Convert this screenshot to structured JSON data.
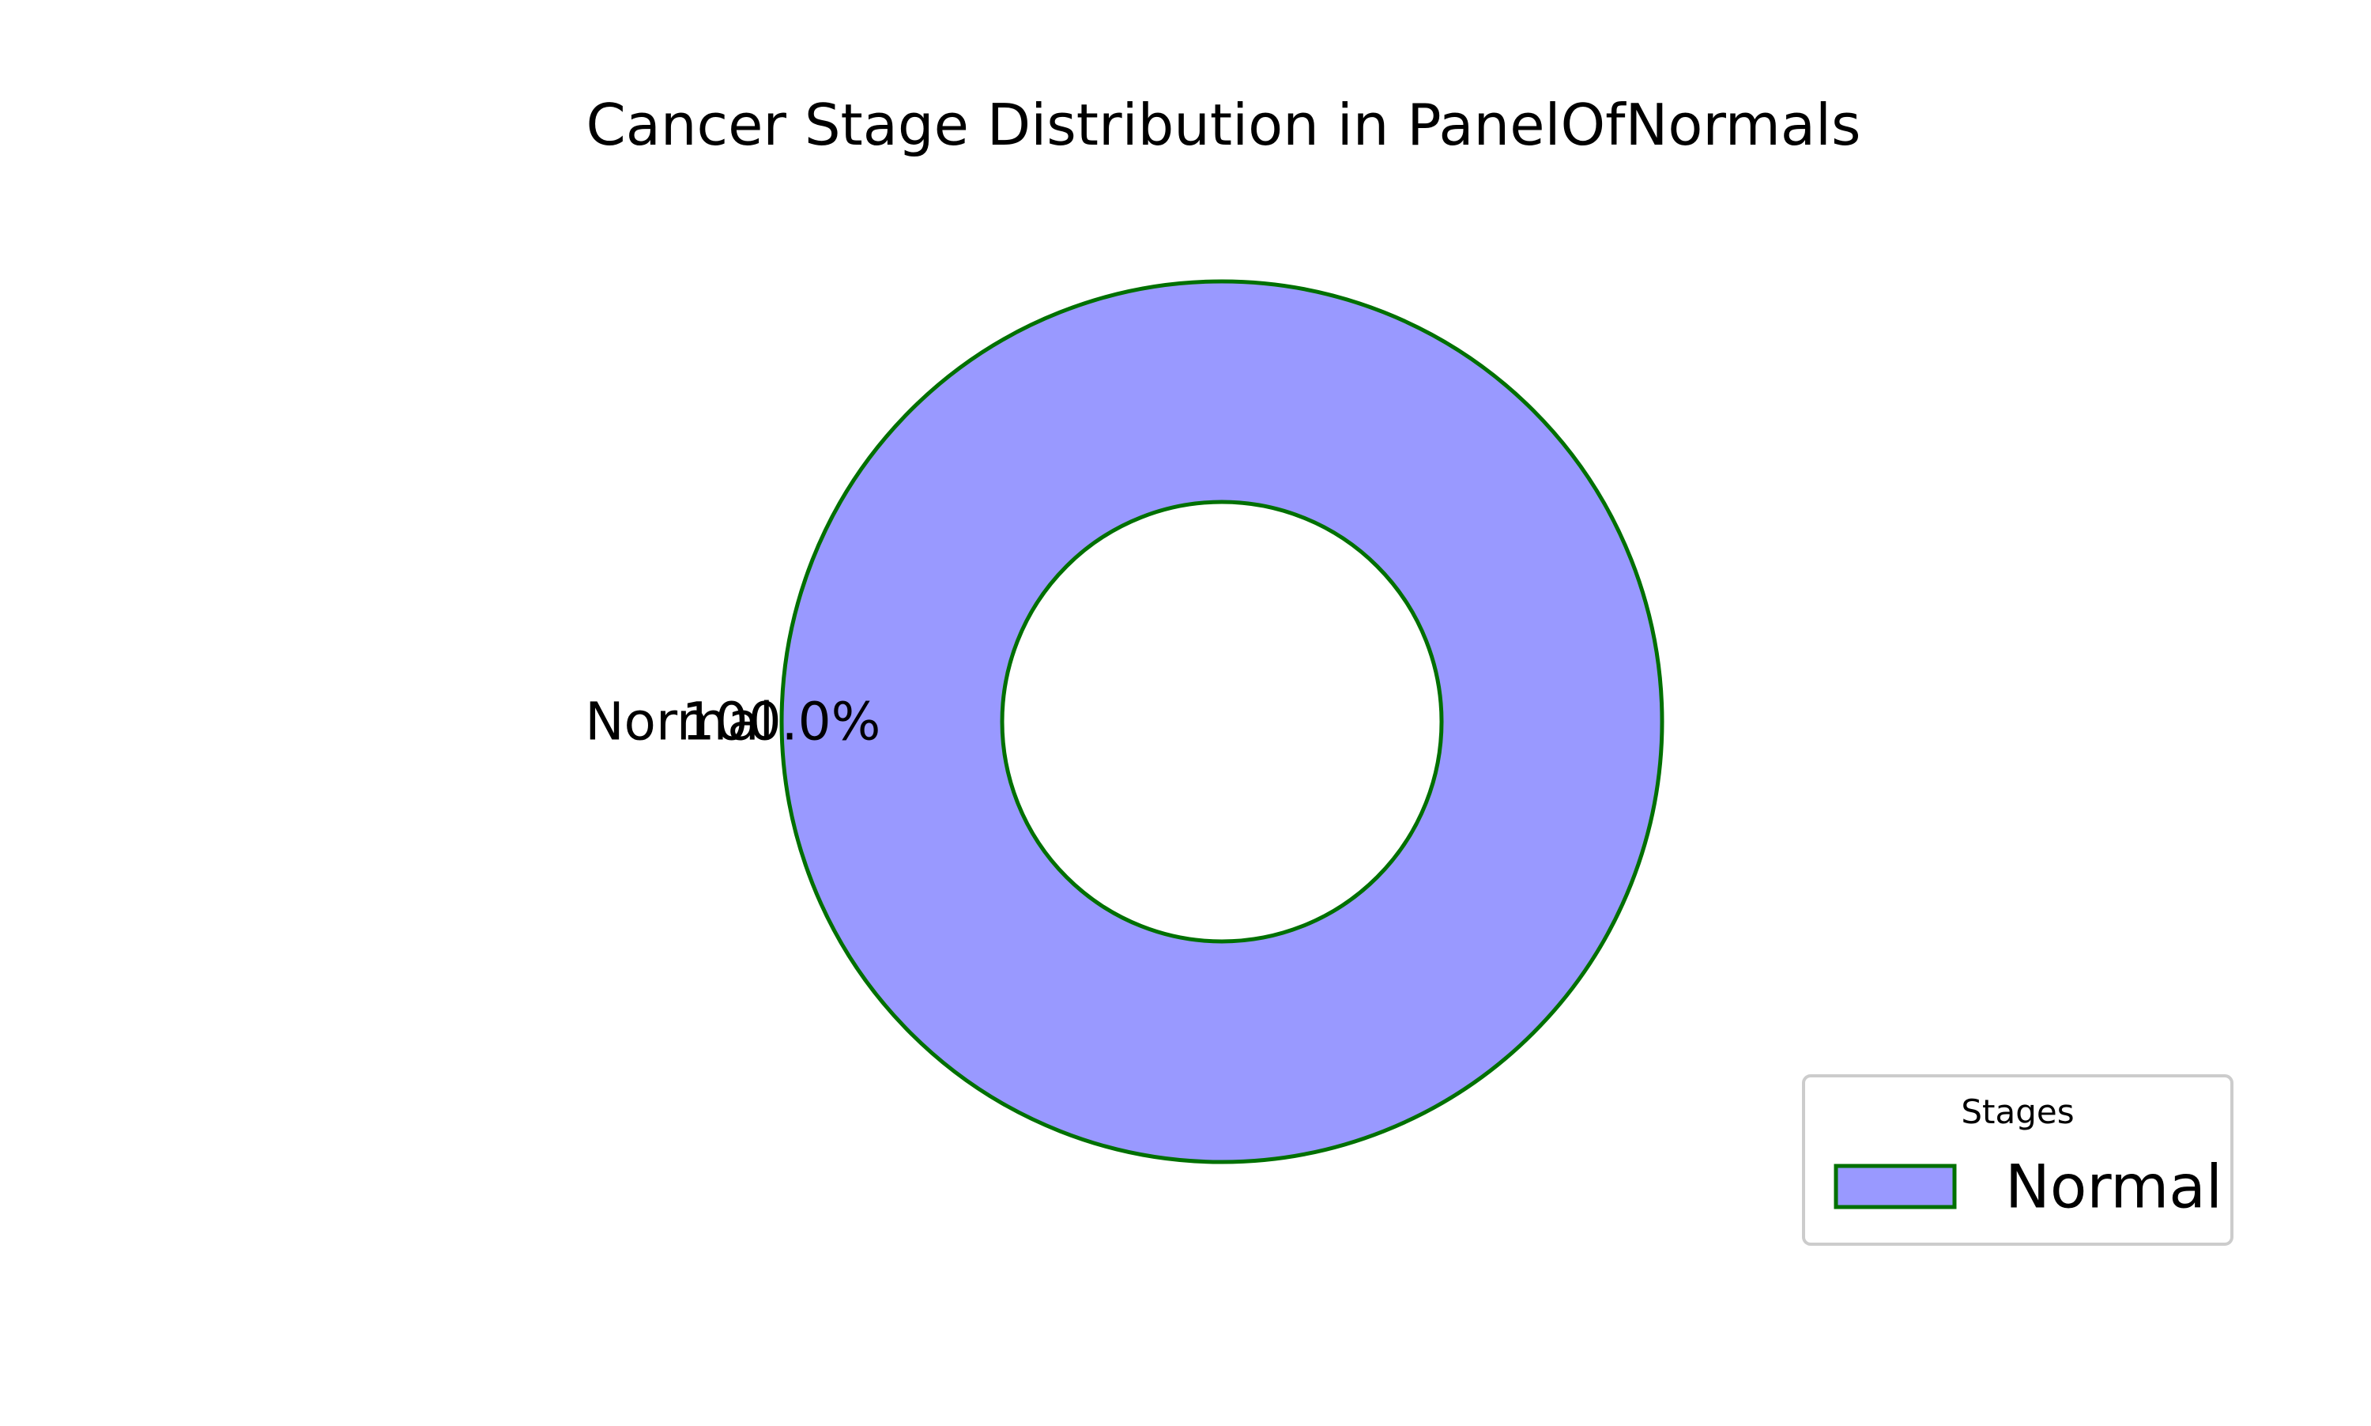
{
  "chart_data": {
    "type": "pie",
    "variant": "donut",
    "title": "Cancer Stage Distribution in PanelOfNormals",
    "slices": [
      {
        "label": "Normal",
        "value": 100.0,
        "pct_label": "100.0%"
      }
    ],
    "colors": {
      "slice_fill": "#9999ff",
      "slice_edge": "#007000",
      "legend_border": "#cccccc"
    },
    "legend": {
      "title": "Stages",
      "placement": "lower-right",
      "entries": [
        "Normal"
      ]
    }
  }
}
